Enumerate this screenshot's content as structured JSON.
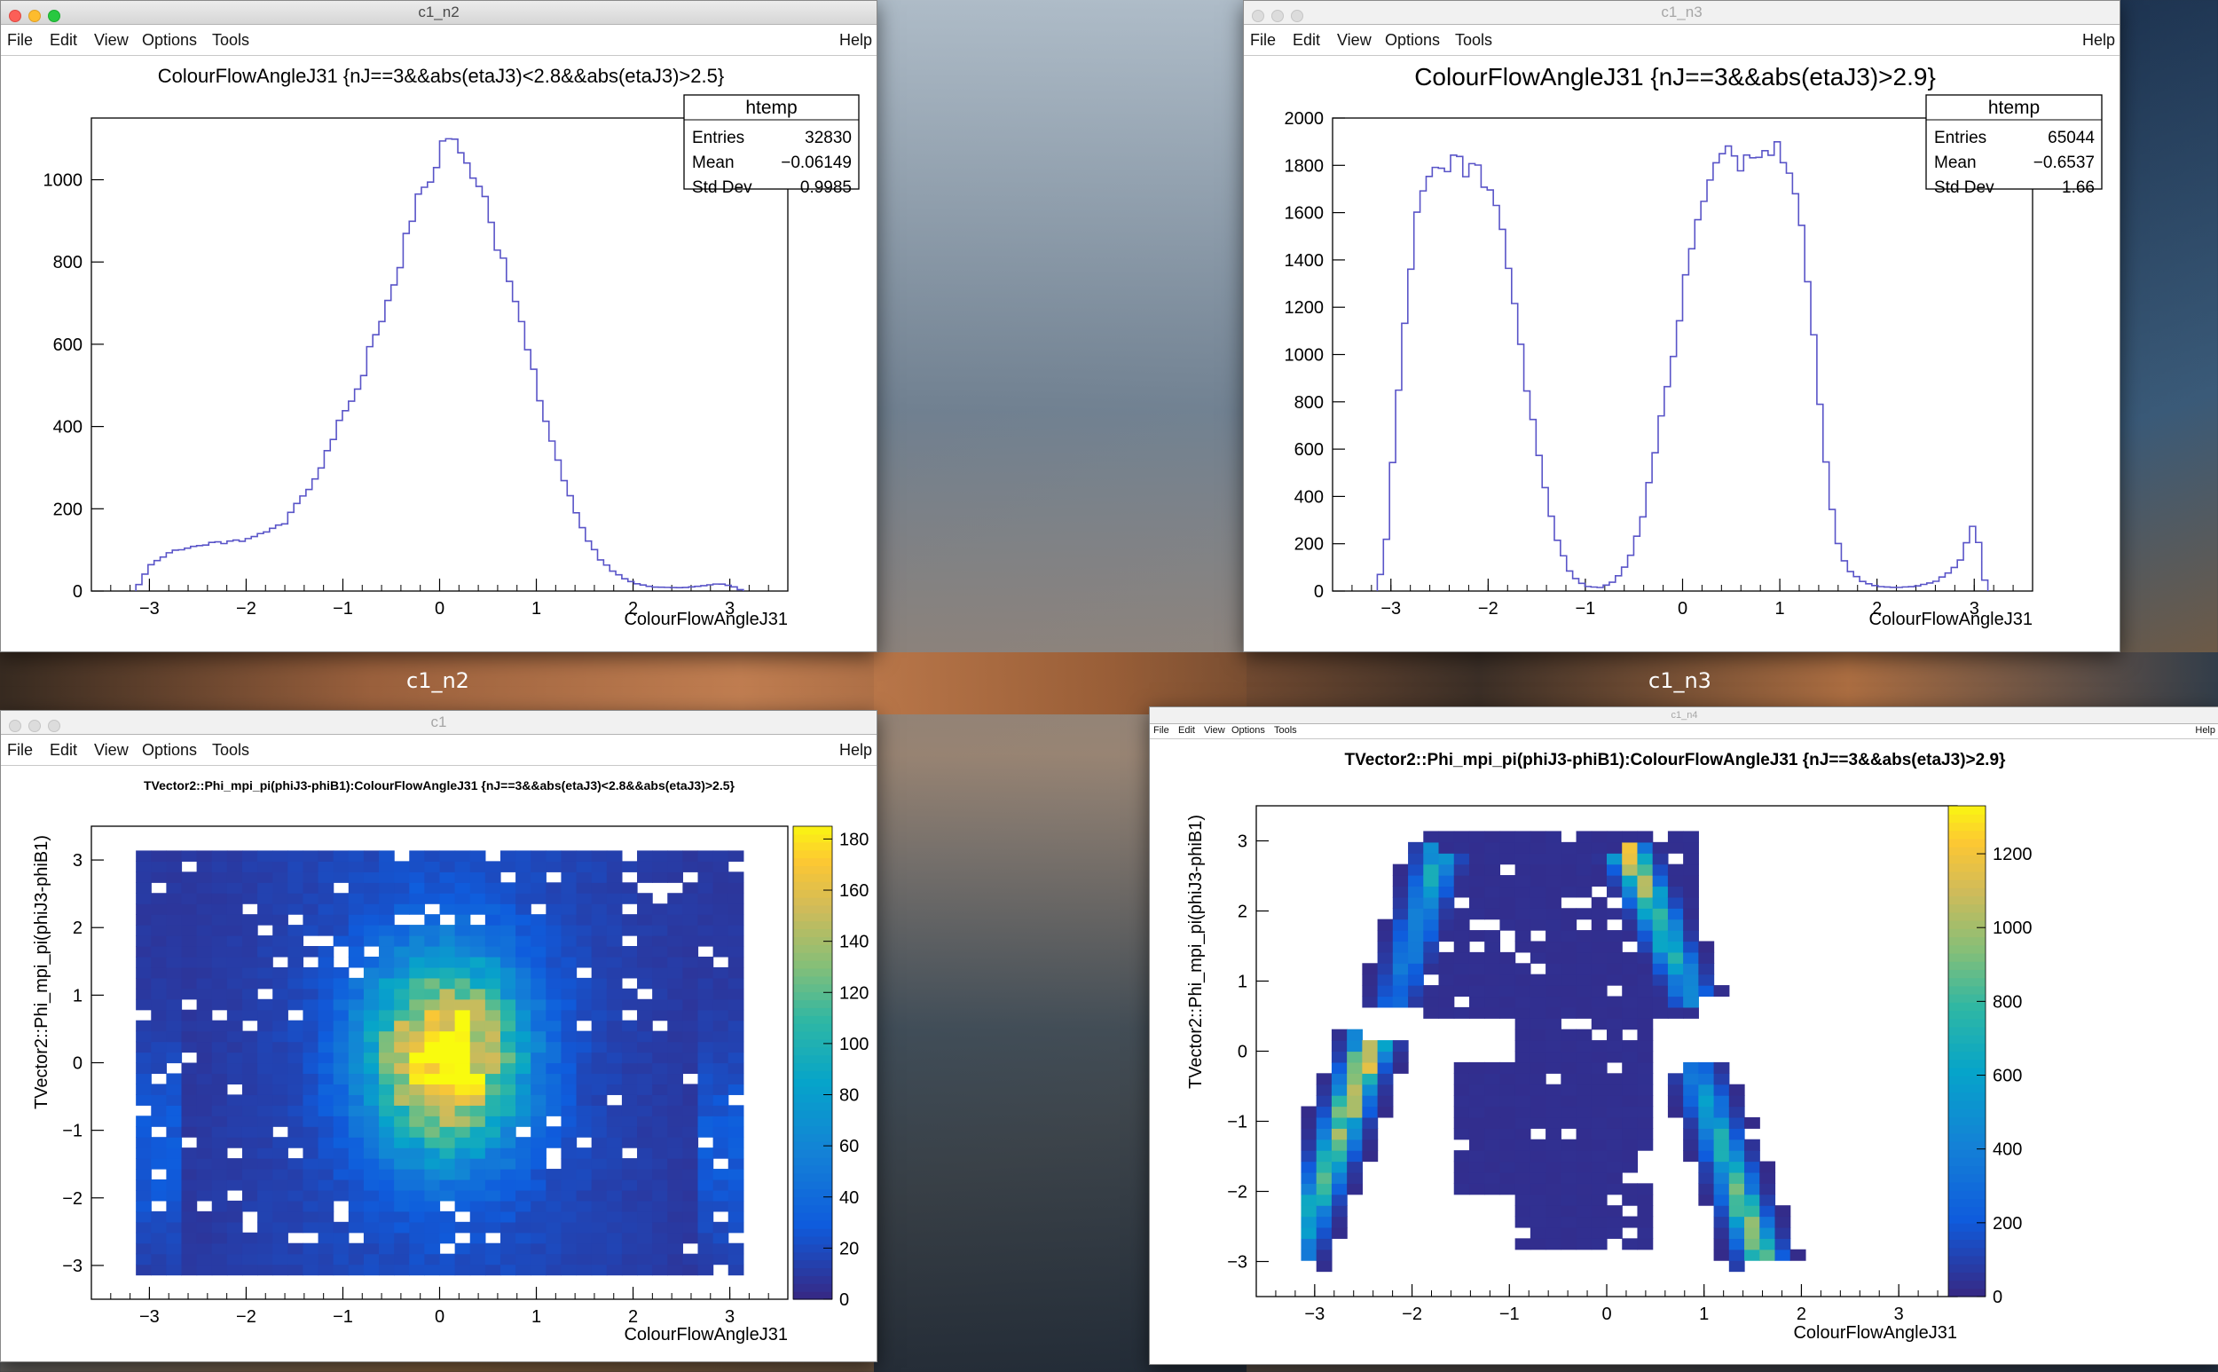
{
  "windows": [
    {
      "id": "w1",
      "title": "c1_n2",
      "active": true,
      "menus": [
        "File",
        "Edit",
        "View",
        "Options",
        "Tools"
      ],
      "help": "Help",
      "chart": {
        "type": "histogram",
        "title": "ColourFlowAngleJ31 {nJ==3&&abs(etaJ3)<2.8&&abs(etaJ3)>2.5}",
        "xlabel": "ColourFlowAngleJ31",
        "ylabel": "",
        "xlim": [
          -3.6,
          3.6
        ],
        "ylim": [
          0,
          1150
        ],
        "xticks": [
          -3,
          -2,
          -1,
          0,
          1,
          2,
          3
        ],
        "yticks": [
          0,
          200,
          400,
          600,
          800,
          1000
        ],
        "line_color": "#5954c8",
        "stats": {
          "title": "htemp",
          "rows": [
            {
              "label": "Entries",
              "value": "32830"
            },
            {
              "label": "Mean",
              "value": "−0.06149"
            },
            {
              "label": "Std Dev",
              "value": "0.9985"
            }
          ]
        }
      }
    },
    {
      "id": "w2",
      "title": "c1_n3",
      "active": false,
      "menus": [
        "File",
        "Edit",
        "View",
        "Options",
        "Tools"
      ],
      "help": "Help",
      "chart": {
        "type": "histogram",
        "title": "ColourFlowAngleJ31 {nJ==3&&abs(etaJ3)>2.9}",
        "xlabel": "ColourFlowAngleJ31",
        "ylabel": "",
        "xlim": [
          -3.6,
          3.6
        ],
        "ylim": [
          0,
          2000
        ],
        "xticks": [
          -3,
          -2,
          -1,
          0,
          1,
          2,
          3
        ],
        "yticks": [
          0,
          200,
          400,
          600,
          800,
          1000,
          1200,
          1400,
          1600,
          1800,
          2000
        ],
        "line_color": "#5954c8",
        "stats": {
          "title": "htemp",
          "rows": [
            {
              "label": "Entries",
              "value": "65044"
            },
            {
              "label": "Mean",
              "value": "−0.6537"
            },
            {
              "label": "Std Dev",
              "value": "1.66"
            }
          ]
        }
      }
    },
    {
      "id": "w3",
      "title": "c1",
      "active": false,
      "menus": [
        "File",
        "Edit",
        "View",
        "Options",
        "Tools"
      ],
      "help": "Help",
      "chart": {
        "type": "heatmap",
        "title": "TVector2::Phi_mpi_pi(phiJ3-phiB1):ColourFlowAngleJ31 {nJ==3&&abs(etaJ3)<2.8&&abs(etaJ3)>2.5}",
        "xlabel": "ColourFlowAngleJ31",
        "ylabel": "TVector2::Phi_mpi_pi(phiJ3-phiB1)",
        "xlim": [
          -3.6,
          3.6
        ],
        "ylim": [
          -3.5,
          3.5
        ],
        "xticks": [
          -3,
          -2,
          -1,
          0,
          1,
          2,
          3
        ],
        "yticks": [
          -3,
          -2,
          -1,
          0,
          1,
          2,
          3
        ],
        "zlim": [
          0,
          185
        ],
        "zticks": [
          0,
          20,
          40,
          60,
          80,
          100,
          120,
          140,
          160,
          180
        ]
      }
    },
    {
      "id": "w4",
      "title": "c1_n4",
      "active": false,
      "small_menus": true,
      "menus": [
        "File",
        "Edit",
        "View",
        "Options",
        "Tools"
      ],
      "help": "Help",
      "chart": {
        "type": "heatmap",
        "title": "TVector2::Phi_mpi_pi(phiJ3-phiB1):ColourFlowAngleJ31 {nJ==3&&abs(etaJ3)>2.9}",
        "xlabel": "ColourFlowAngleJ31",
        "ylabel": "TVector2::Phi_mpi_pi(phiJ3-phiB1)",
        "xlim": [
          -3.6,
          3.6
        ],
        "ylim": [
          -3.5,
          3.5
        ],
        "xticks": [
          -3,
          -2,
          -1,
          0,
          1,
          2,
          3
        ],
        "yticks": [
          -3,
          -2,
          -1,
          0,
          1,
          2,
          3
        ],
        "zlim": [
          0,
          1330
        ],
        "zticks": [
          0,
          200,
          400,
          600,
          800,
          1000,
          1200
        ]
      }
    }
  ],
  "desktop_labels": [
    "c1_n2",
    "c1_n3"
  ],
  "chart_data": [
    {
      "type": "histogram",
      "title": "ColourFlowAngleJ31 {nJ==3&&abs(etaJ3)<2.8&&abs(etaJ3)>2.5}",
      "xlabel": "ColourFlowAngleJ31",
      "bin_range": [
        -3.14,
        3.14
      ],
      "nbins": 100,
      "approx_points": [
        [
          -3.14,
          0
        ],
        [
          -3.1,
          20
        ],
        [
          -3.0,
          60
        ],
        [
          -2.8,
          95
        ],
        [
          -2.5,
          110
        ],
        [
          -2.2,
          120
        ],
        [
          -2.0,
          125
        ],
        [
          -1.8,
          140
        ],
        [
          -1.6,
          165
        ],
        [
          -1.5,
          200
        ],
        [
          -1.35,
          250
        ],
        [
          -1.2,
          310
        ],
        [
          -1.05,
          400
        ],
        [
          -0.9,
          470
        ],
        [
          -0.75,
          560
        ],
        [
          -0.6,
          660
        ],
        [
          -0.45,
          770
        ],
        [
          -0.3,
          880
        ],
        [
          -0.15,
          990
        ],
        [
          0.0,
          1060
        ],
        [
          0.1,
          1090
        ],
        [
          0.2,
          1080
        ],
        [
          0.3,
          1030
        ],
        [
          0.45,
          950
        ],
        [
          0.6,
          850
        ],
        [
          0.75,
          720
        ],
        [
          0.9,
          600
        ],
        [
          1.05,
          460
        ],
        [
          1.2,
          340
        ],
        [
          1.35,
          230
        ],
        [
          1.5,
          140
        ],
        [
          1.65,
          80
        ],
        [
          1.8,
          45
        ],
        [
          2.0,
          20
        ],
        [
          2.2,
          10
        ],
        [
          2.5,
          8
        ],
        [
          2.7,
          12
        ],
        [
          2.9,
          18
        ],
        [
          3.05,
          10
        ],
        [
          3.14,
          0
        ]
      ],
      "stats": {
        "Entries": 32830,
        "Mean": -0.06149,
        "Std Dev": 0.9985
      }
    },
    {
      "type": "histogram",
      "title": "ColourFlowAngleJ31 {nJ==3&&abs(etaJ3)>2.9}",
      "xlabel": "ColourFlowAngleJ31",
      "bin_range": [
        -3.14,
        3.14
      ],
      "nbins": 100,
      "approx_points": [
        [
          -3.14,
          0
        ],
        [
          -3.05,
          200
        ],
        [
          -2.95,
          700
        ],
        [
          -2.85,
          1200
        ],
        [
          -2.75,
          1550
        ],
        [
          -2.65,
          1750
        ],
        [
          -2.5,
          1790
        ],
        [
          -2.35,
          1790
        ],
        [
          -2.2,
          1810
        ],
        [
          -2.05,
          1760
        ],
        [
          -1.9,
          1600
        ],
        [
          -1.75,
          1250
        ],
        [
          -1.6,
          850
        ],
        [
          -1.45,
          500
        ],
        [
          -1.3,
          230
        ],
        [
          -1.15,
          70
        ],
        [
          -1.0,
          20
        ],
        [
          -0.85,
          15
        ],
        [
          -0.7,
          40
        ],
        [
          -0.55,
          130
        ],
        [
          -0.4,
          330
        ],
        [
          -0.25,
          650
        ],
        [
          -0.1,
          1000
        ],
        [
          0.05,
          1350
        ],
        [
          0.2,
          1630
        ],
        [
          0.35,
          1820
        ],
        [
          0.5,
          1840
        ],
        [
          0.65,
          1820
        ],
        [
          0.8,
          1800
        ],
        [
          0.9,
          1850
        ],
        [
          1.0,
          1880
        ],
        [
          1.1,
          1800
        ],
        [
          1.2,
          1650
        ],
        [
          1.3,
          1300
        ],
        [
          1.4,
          850
        ],
        [
          1.5,
          450
        ],
        [
          1.6,
          200
        ],
        [
          1.7,
          90
        ],
        [
          1.85,
          40
        ],
        [
          2.0,
          20
        ],
        [
          2.2,
          15
        ],
        [
          2.4,
          20
        ],
        [
          2.6,
          40
        ],
        [
          2.75,
          80
        ],
        [
          2.85,
          120
        ],
        [
          2.95,
          240
        ],
        [
          3.0,
          280
        ],
        [
          3.05,
          200
        ],
        [
          3.1,
          60
        ],
        [
          3.14,
          0
        ]
      ],
      "stats": {
        "Entries": 65044,
        "Mean": -0.6537,
        "Std Dev": 1.66
      }
    },
    {
      "type": "heatmap",
      "title": "TVector2::Phi_mpi_pi(phiJ3-phiB1):ColourFlowAngleJ31 {nJ==3&&abs(etaJ3)<2.8&&abs(etaJ3)>2.5}",
      "xlabel": "ColourFlowAngleJ31",
      "ylabel": "TVector2::Phi_mpi_pi(phiJ3-phiB1)",
      "x_range": [
        -3.14,
        3.14
      ],
      "y_range": [
        -3.14,
        3.14
      ],
      "nbins": 40,
      "peak": {
        "x": 0.05,
        "y": 0.1,
        "value": 180
      },
      "z_range": [
        0,
        185
      ]
    },
    {
      "type": "heatmap",
      "title": "TVector2::Phi_mpi_pi(phiJ3-phiB1):ColourFlowAngleJ31 {nJ==3&&abs(etaJ3)>2.9}",
      "xlabel": "ColourFlowAngleJ31",
      "ylabel": "TVector2::Phi_mpi_pi(phiJ3-phiB1)",
      "x_range": [
        -3.14,
        3.14
      ],
      "y_range": [
        -3.14,
        3.14
      ],
      "nbins": 40,
      "ridge_bands": [
        {
          "x_from": -3.2,
          "y_from": -3.0,
          "x_to": -2.4,
          "y_to": 0.2,
          "peak_value": 1300
        },
        {
          "x_from": -2.2,
          "y_from": 0.6,
          "x_to": -1.7,
          "y_to": 2.9,
          "peak_value": 700
        },
        {
          "x_from": 0.9,
          "y_from": 0.7,
          "x_to": 0.2,
          "y_to": 2.9,
          "peak_value": 1200
        },
        {
          "x_from": 0.9,
          "y_from": -0.2,
          "x_to": 1.6,
          "y_to": -3.0,
          "peak_value": 1100
        }
      ],
      "z_range": [
        0,
        1330
      ]
    }
  ]
}
